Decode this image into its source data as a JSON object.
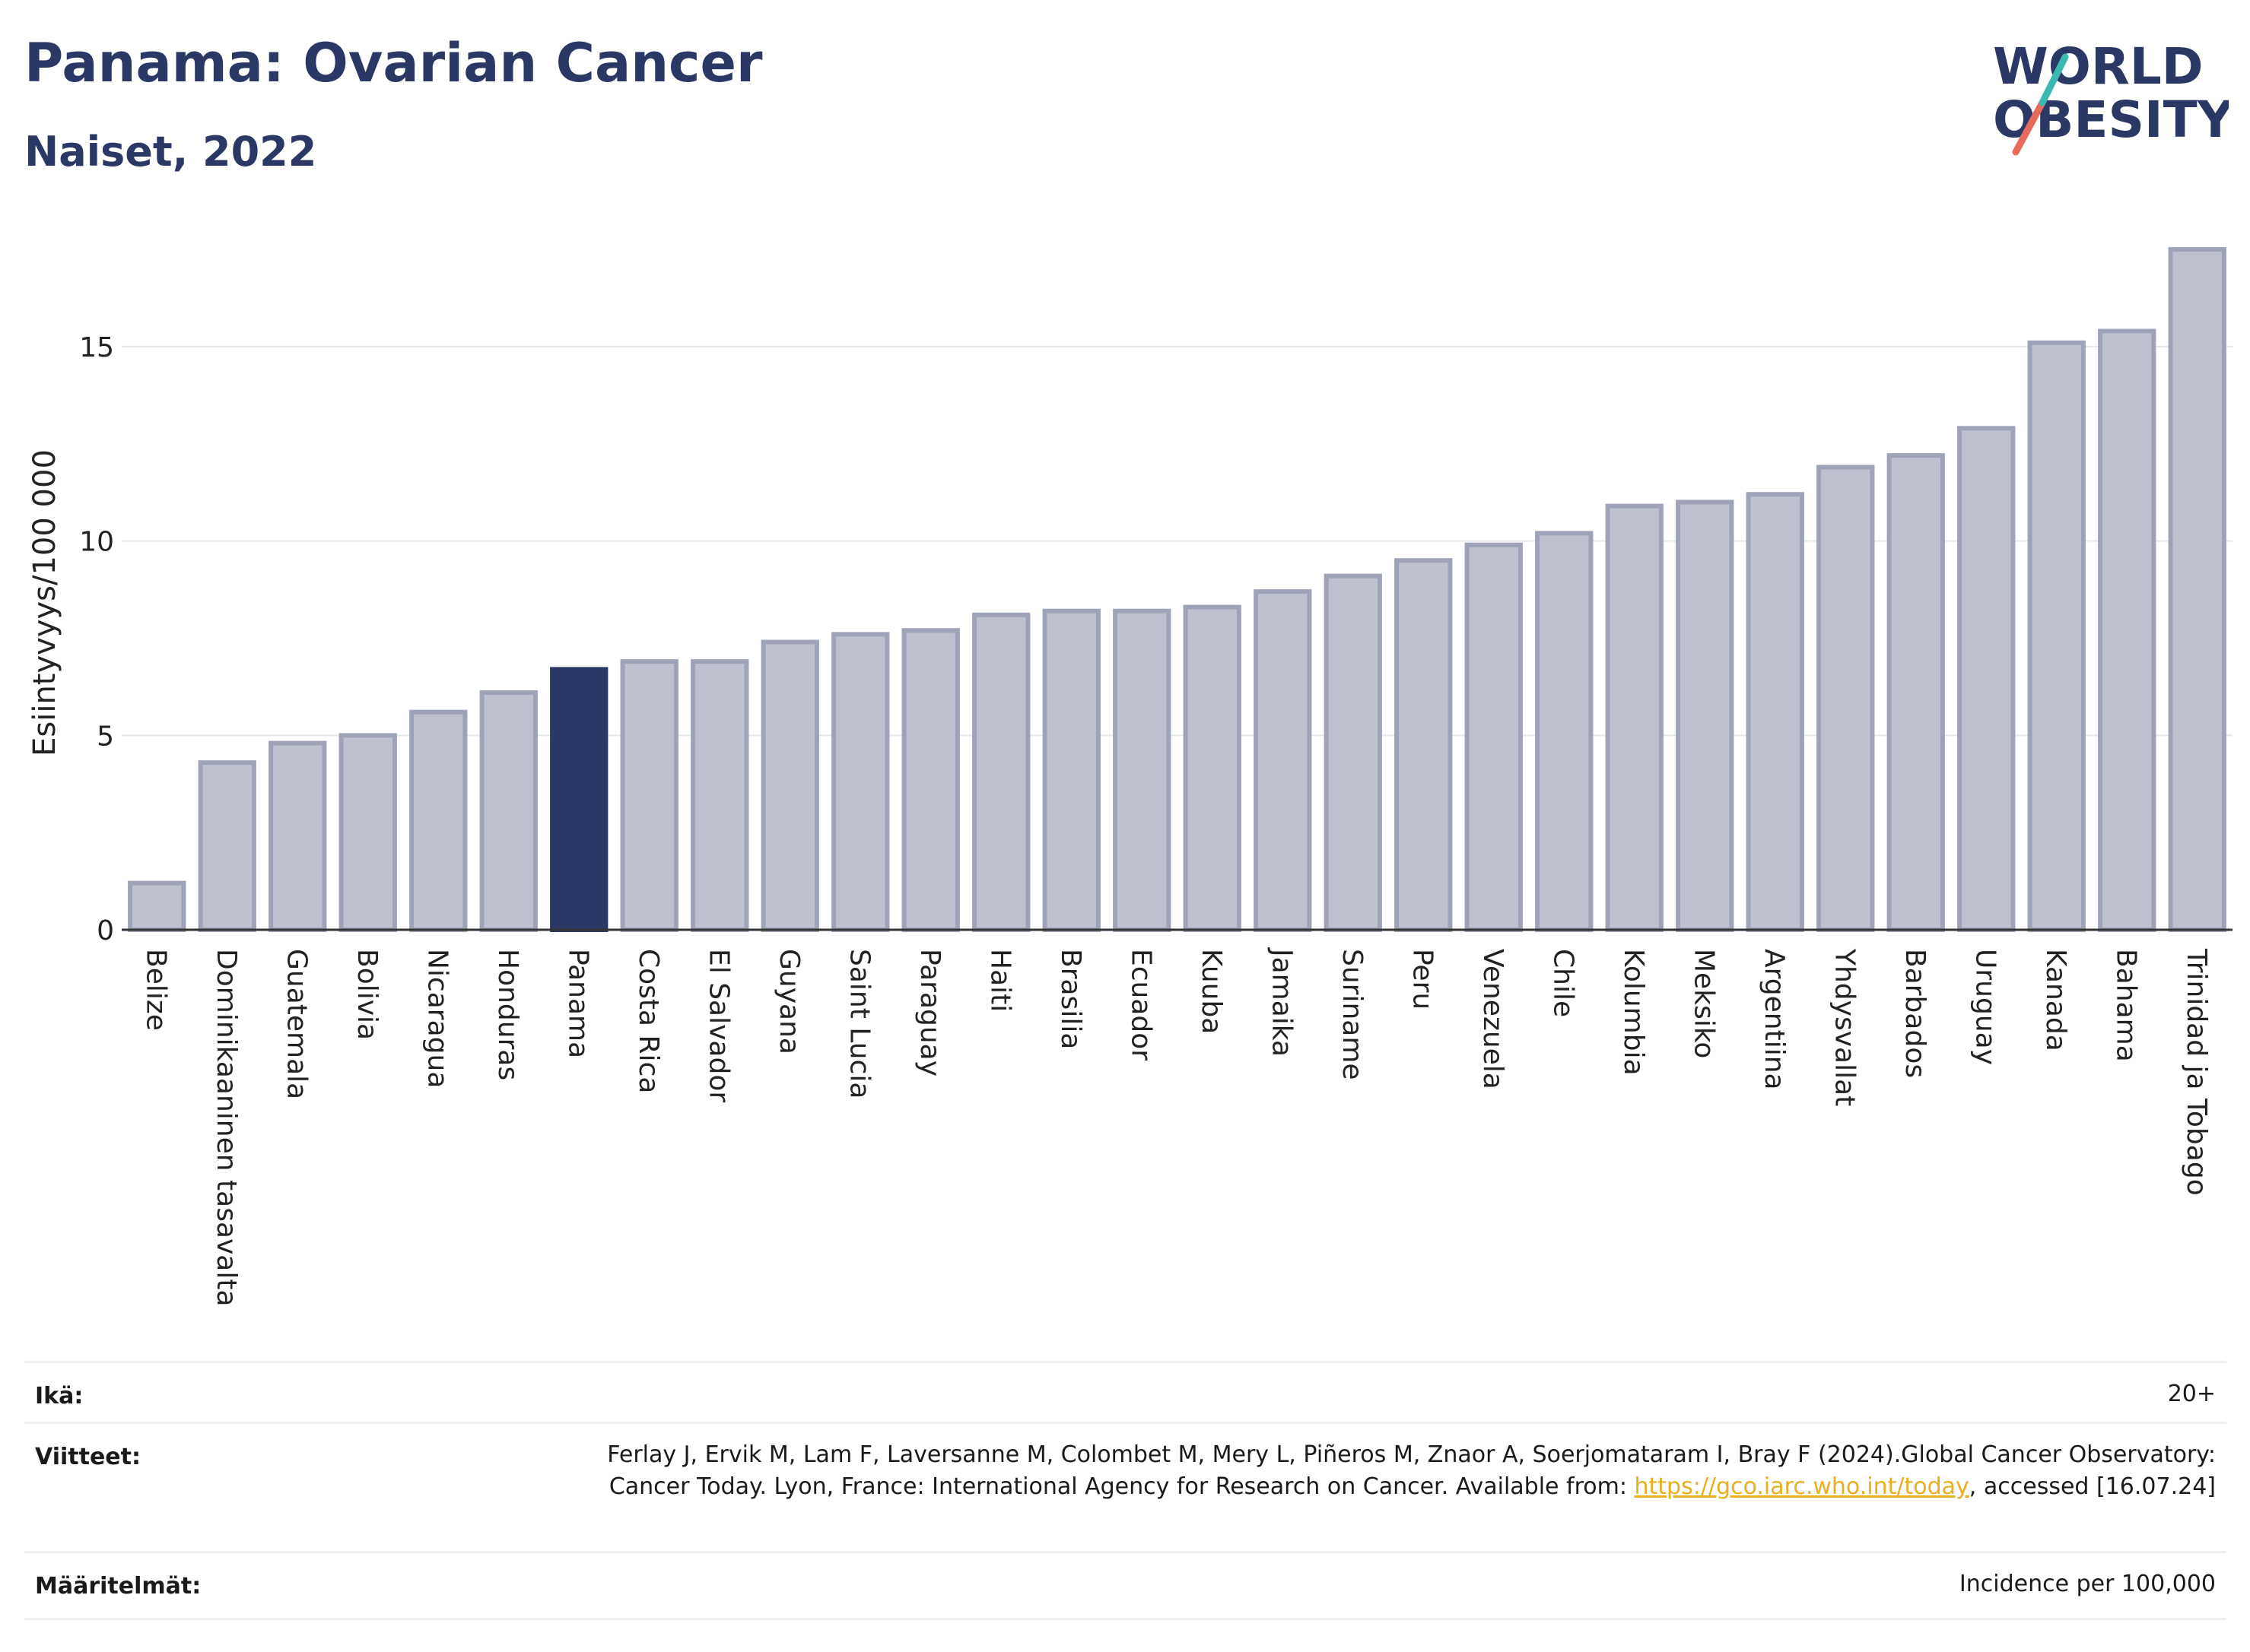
{
  "title": "Panama: Ovarian Cancer",
  "subtitle": "Naiset, 2022",
  "logo": {
    "line1": "WORLD",
    "line2": "OBESITY"
  },
  "chart_data": {
    "type": "bar",
    "ylabel": "Esiintyvyys/100 000",
    "ylim": [
      0,
      17.6
    ],
    "yticks": [
      0,
      5,
      10,
      15
    ],
    "grid": true,
    "highlight": "Panama",
    "colors": {
      "bar": "#bfc2ce",
      "bar_edge": "#9ea3b8",
      "highlight": "#2b3764",
      "grid": "#e6e8ec",
      "axis": "#333333"
    },
    "categories": [
      "Belize",
      "Dominikaaninen tasavalta",
      "Guatemala",
      "Bolivia",
      "Nicaragua",
      "Honduras",
      "Panama",
      "Costa Rica",
      "El Salvador",
      "Guyana",
      "Saint Lucia",
      "Paraguay",
      "Haiti",
      "Brasilia",
      "Ecuador",
      "Kuuba",
      "Jamaika",
      "Suriname",
      "Peru",
      "Venezuela",
      "Chile",
      "Kolumbia",
      "Meksiko",
      "Argentiina",
      "Yhdysvallat",
      "Barbados",
      "Uruguay",
      "Kanada",
      "Bahama",
      "Trinidad ja Tobago"
    ],
    "values": [
      1.2,
      4.3,
      4.8,
      5.0,
      5.6,
      6.1,
      6.7,
      6.9,
      6.9,
      7.4,
      7.6,
      7.7,
      8.1,
      8.2,
      8.2,
      8.3,
      8.7,
      9.1,
      9.5,
      9.9,
      10.2,
      10.9,
      11.0,
      11.2,
      11.9,
      12.2,
      12.9,
      15.1,
      15.4,
      17.5
    ]
  },
  "footer": {
    "age_label": "Ikä:",
    "age_value": "20+",
    "refs_label": "Viitteet:",
    "refs_text": "Ferlay J, Ervik M, Lam F, Laversanne M, Colombet M, Mery L, Piñeros M, Znaor A, Soerjomataram I, Bray F (2024).Global Cancer Observatory: Cancer Today. Lyon, France: International Agency for Research on Cancer. Available from: ",
    "refs_link": "https://gco.iarc.who.int/today",
    "refs_tail": ", accessed [16.07.24]",
    "def_label": "Määritelmät:",
    "def_value": "Incidence per 100,000"
  }
}
